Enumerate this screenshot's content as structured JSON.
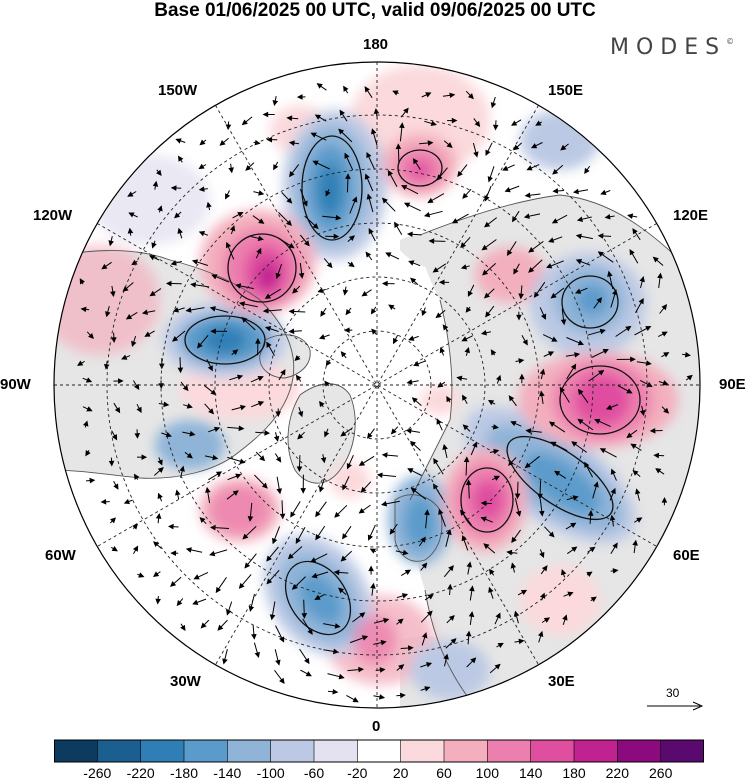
{
  "title": "Base 01/06/2025 00 UTC, valid 09/06/2025 00 UTC",
  "logo": {
    "text": "MODES",
    "mark": "©"
  },
  "longitude_labels": {
    "lon_180": "180",
    "lon_150e": "150E",
    "lon_120e": "120E",
    "lon_90e": "90E",
    "lon_60e": "60E",
    "lon_30e": "30E",
    "lon_0": "0",
    "lon_30w": "30W",
    "lon_60w": "60W",
    "lon_90w": "90W",
    "lon_120w": "120W",
    "lon_150w": "150W"
  },
  "reference_vector": {
    "value": "30",
    "icon": "arrow-right-icon"
  },
  "colorbar": {
    "ticks": [
      "-260",
      "-220",
      "-180",
      "-140",
      "-100",
      "-60",
      "-20",
      "20",
      "60",
      "100",
      "140",
      "180",
      "220",
      "260"
    ],
    "colors": [
      "#0d3a5f",
      "#1a5f8f",
      "#2f7fb6",
      "#5b9bcb",
      "#8fb4d8",
      "#bcc9e4",
      "#e4e2f0",
      "#ffffff",
      "#fbd9dc",
      "#f3afbd",
      "#ec7fae",
      "#e04ea0",
      "#c0238f",
      "#8b0a7d",
      "#5a0a6e"
    ]
  },
  "colors": {
    "land": "#e6e6e6",
    "ocean": "#ffffff",
    "coast": "#555555",
    "grid": "#222222"
  }
}
